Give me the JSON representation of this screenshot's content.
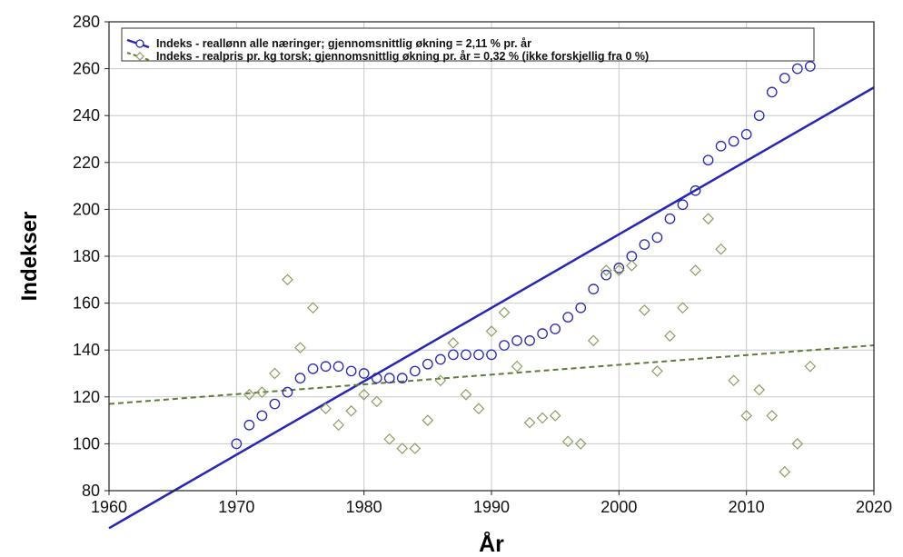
{
  "chart_data": {
    "type": "scatter",
    "xlabel": "År",
    "ylabel": "Indekser",
    "xlim": [
      1960,
      2020
    ],
    "ylim": [
      80,
      280
    ],
    "xticks": [
      "1960",
      "1970",
      "1980",
      "1990",
      "2000",
      "2010",
      "2020"
    ],
    "yticks": [
      "80",
      "100",
      "120",
      "140",
      "160",
      "180",
      "200",
      "220",
      "240",
      "260",
      "280"
    ],
    "grid": true,
    "legend_position": "top-left",
    "series": [
      {
        "name": "Indeks - reallønn alle næringer; gjennomsnittlig økning = 2,11 % pr. år",
        "marker": "circle",
        "color": "#2626b3",
        "x": [
          1970,
          1971,
          1972,
          1973,
          1974,
          1975,
          1976,
          1977,
          1978,
          1979,
          1980,
          1981,
          1982,
          1983,
          1984,
          1985,
          1986,
          1987,
          1988,
          1989,
          1990,
          1991,
          1992,
          1993,
          1994,
          1995,
          1996,
          1997,
          1998,
          1999,
          2000,
          2001,
          2002,
          2003,
          2004,
          2005,
          2006,
          2007,
          2008,
          2009,
          2010,
          2011,
          2012,
          2013,
          2014,
          2015
        ],
        "y": [
          100,
          108,
          112,
          117,
          122,
          128,
          132,
          133,
          133,
          131,
          130,
          128,
          128,
          128,
          131,
          134,
          136,
          138,
          138,
          138,
          138,
          142,
          144,
          144,
          147,
          149,
          154,
          158,
          166,
          172,
          175,
          180,
          185,
          188,
          196,
          202,
          208,
          221,
          227,
          229,
          232,
          240,
          250,
          256,
          260,
          261
        ],
        "trend": {
          "type": "line",
          "style": "solid",
          "x": [
            1960,
            2020
          ],
          "y": [
            64,
            252
          ]
        }
      },
      {
        "name": "Indeks - realpris pr. kg torsk; gjennomsnittlig økning pr. år = 0,32 % (ikke forskjellig fra 0 %)",
        "marker": "diamond",
        "color": "#8c9c63",
        "x": [
          1971,
          1972,
          1973,
          1974,
          1975,
          1976,
          1977,
          1978,
          1979,
          1980,
          1981,
          1982,
          1983,
          1984,
          1985,
          1986,
          1987,
          1988,
          1989,
          1990,
          1991,
          1992,
          1993,
          1994,
          1995,
          1996,
          1997,
          1998,
          1999,
          2000,
          2001,
          2002,
          2003,
          2004,
          2005,
          2006,
          2007,
          2008,
          2009,
          2010,
          2011,
          2012,
          2013,
          2014,
          2015
        ],
        "y": [
          121,
          122,
          130,
          170,
          141,
          158,
          115,
          108,
          114,
          121,
          118,
          102,
          98,
          98,
          110,
          127,
          143,
          121,
          115,
          148,
          156,
          133,
          109,
          111,
          112,
          101,
          100,
          144,
          174,
          174,
          176,
          157,
          131,
          146,
          158,
          174,
          196,
          183,
          127,
          112,
          123,
          112,
          88,
          100,
          133
        ],
        "trend": {
          "type": "line",
          "style": "dashed",
          "x": [
            1960,
            2020
          ],
          "y": [
            117,
            142
          ]
        }
      }
    ]
  }
}
